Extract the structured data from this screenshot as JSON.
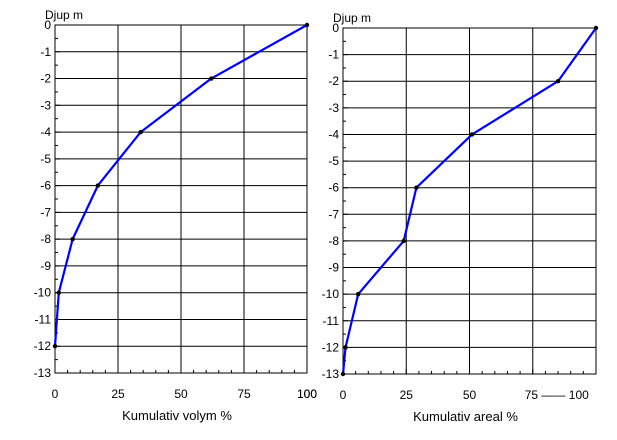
{
  "chart_data": [
    {
      "type": "line",
      "title": "",
      "ylabel": "Djup m",
      "xlabel": "Kumulativ volym %",
      "xlim": [
        0,
        100
      ],
      "ylim": [
        -13,
        0
      ],
      "x_ticks": [
        "0",
        "25",
        "50",
        "75",
        "100"
      ],
      "y_ticks": [
        "0",
        "-1",
        "-2",
        "-3",
        "-4",
        "-5",
        "-6",
        "-7",
        "-8",
        "-9",
        "-10",
        "-11",
        "-12",
        "-13"
      ],
      "grid": true,
      "series": [
        {
          "x": [
            100,
            62,
            34,
            17,
            7,
            1.5,
            0
          ],
          "y": [
            0,
            -2,
            -4,
            -6,
            -8,
            -10,
            -12
          ]
        }
      ],
      "line_color": "#0000ff",
      "marker_color": "#000000"
    },
    {
      "type": "line",
      "title": "",
      "ylabel": "Djup m",
      "xlabel": "Kumulativ areal %",
      "xlim": [
        0,
        100
      ],
      "ylim": [
        -13,
        0
      ],
      "x_ticks": [
        "0",
        "25",
        "50",
        "75 —— 100"
      ],
      "y_ticks": [
        "0",
        "-1",
        "-2",
        "-3",
        "-4",
        "-5",
        "-6",
        "-7",
        "-8",
        "-9",
        "-10",
        "-11",
        "-12",
        "-13"
      ],
      "grid": true,
      "series": [
        {
          "x": [
            100,
            85,
            51,
            29,
            24,
            6,
            1,
            0
          ],
          "y": [
            0,
            -2,
            -4,
            -6,
            -8,
            -10,
            -12,
            -13
          ]
        }
      ],
      "line_color": "#0000ff",
      "marker_color": "#000000"
    }
  ]
}
